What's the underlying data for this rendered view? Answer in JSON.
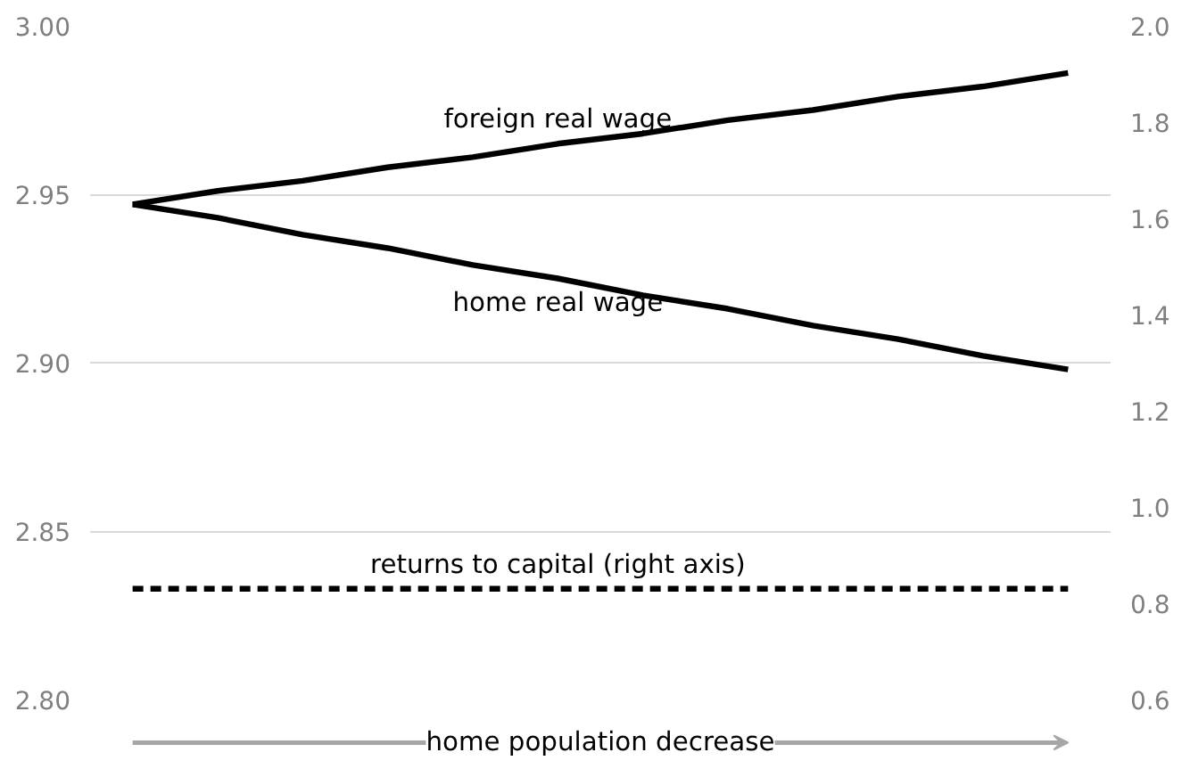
{
  "chart_data": {
    "type": "line",
    "categories": [
      null,
      null,
      null,
      null,
      null,
      null,
      null,
      null,
      null,
      null,
      null,
      null
    ],
    "series": [
      {
        "name": "foreign real wage",
        "color": "#000000",
        "values": [
          2.947,
          2.951,
          2.954,
          2.958,
          2.961,
          2.965,
          2.968,
          2.972,
          2.975,
          2.979,
          2.982,
          2.986
        ]
      },
      {
        "name": "home real wage",
        "color": "#000000",
        "values": [
          2.947,
          2.943,
          2.938,
          2.934,
          2.929,
          2.925,
          2.92,
          2.916,
          2.911,
          2.907,
          2.902,
          2.898
        ]
      },
      {
        "name": "returns to capital (right axis)",
        "color": "#000000",
        "values": [
          0.83,
          0.83,
          0.83,
          0.83,
          0.83,
          0.83,
          0.83,
          0.83,
          0.83,
          0.83,
          0.83,
          0.83
        ],
        "axis": "y2",
        "line_style": "dashed"
      }
    ],
    "ylim": [
      2.8,
      3.0
    ],
    "yticks": [
      {
        "value": 2.8,
        "label": "2.80"
      },
      {
        "value": 2.85,
        "label": "2.85"
      },
      {
        "value": 2.9,
        "label": "2.90"
      },
      {
        "value": 2.95,
        "label": "2.95"
      },
      {
        "value": 3.0,
        "label": "3.00"
      }
    ],
    "y2lim": [
      0.6,
      2.0
    ],
    "y2ticks": [
      0.6,
      0.8,
      {
        "value": 1.0,
        "label": "1.0"
      },
      1.2,
      1.4,
      1.6,
      1.8,
      {
        "value": 2.0,
        "label": "2.0"
      }
    ],
    "annotations": [
      "home population decrease"
    ],
    "grid": "y",
    "legend": false,
    "line_style": "solid"
  }
}
